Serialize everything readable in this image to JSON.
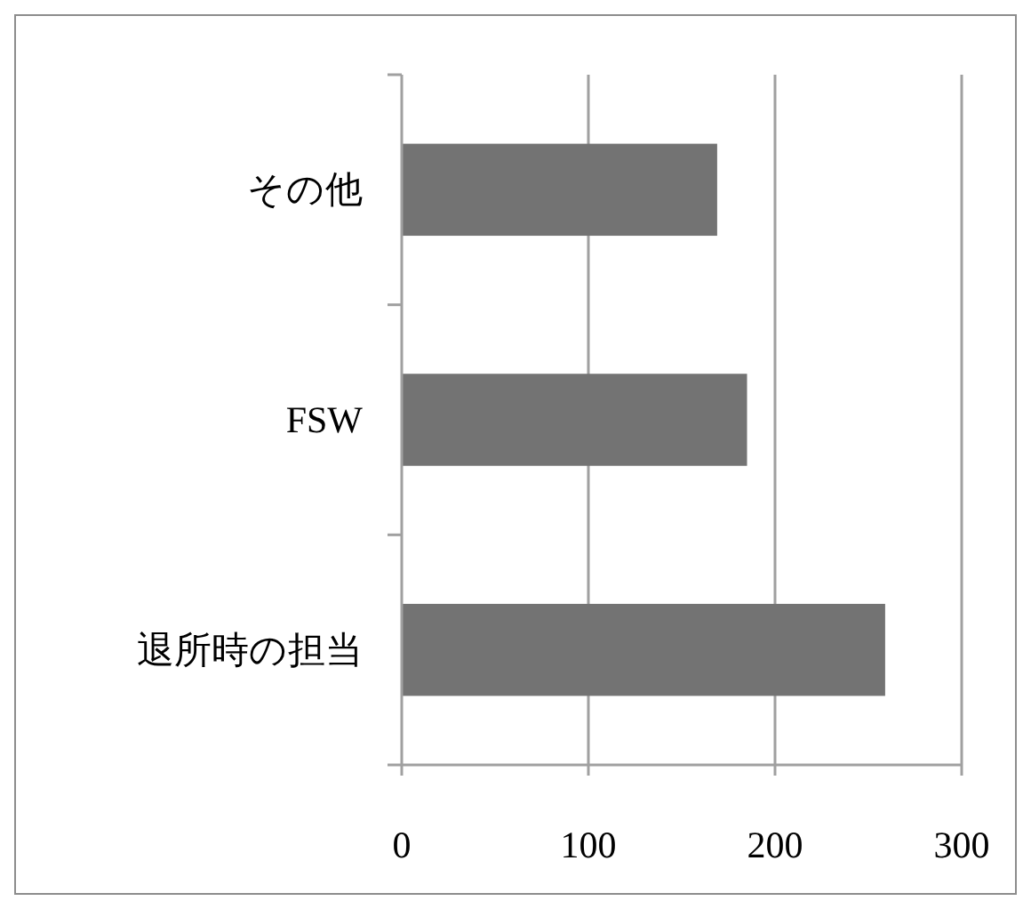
{
  "chart_data": {
    "type": "bar",
    "orientation": "horizontal",
    "categories": [
      "その他",
      "FSW",
      "退所時の担当"
    ],
    "values": [
      169,
      185,
      259
    ],
    "color": "#737373",
    "xlim": [
      0,
      300
    ],
    "xticks": [
      0,
      100,
      200,
      300
    ],
    "grid": "x"
  }
}
